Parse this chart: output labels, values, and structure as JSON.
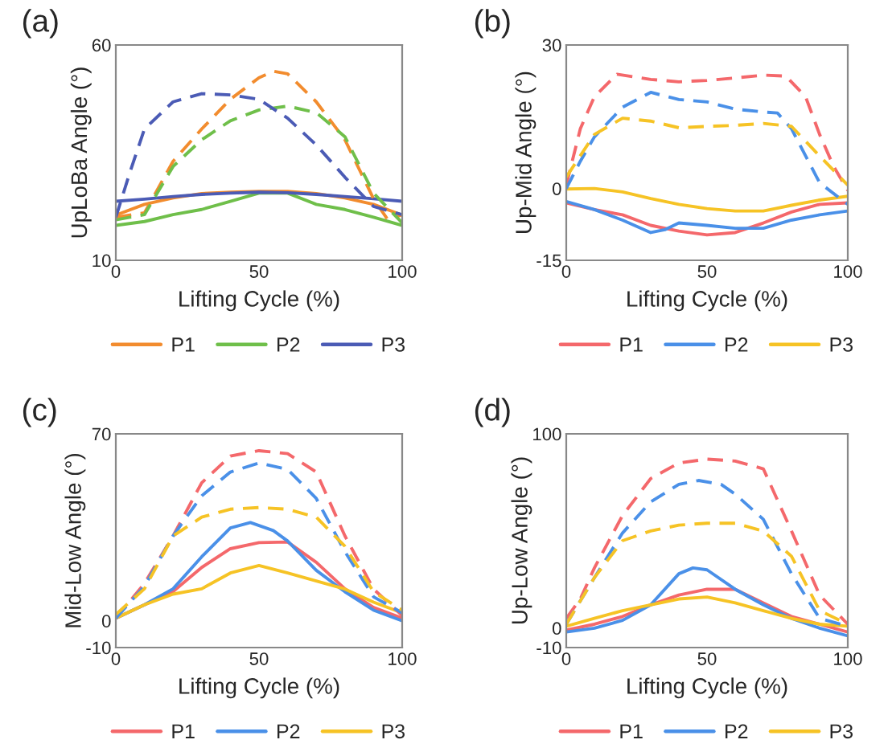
{
  "chart_data": [
    {
      "type": "line",
      "title": "(a)",
      "xlabel": "Lifting Cycle (%)",
      "ylabel": "UpLoBa Angle (°)",
      "xlim": [
        0,
        100
      ],
      "xticks": [
        0,
        50,
        100
      ],
      "ylim": [
        10,
        60
      ],
      "yticks": [
        10,
        60
      ],
      "legend": "bottom",
      "grid": false,
      "series": [
        {
          "name": "P1",
          "color": "#f28c2e",
          "line_style": "solid",
          "x": [
            0,
            10,
            20,
            30,
            40,
            50,
            60,
            70,
            80,
            90,
            100
          ],
          "values": [
            20.5,
            23,
            24.5,
            25.5,
            25.8,
            26,
            26,
            25.5,
            24.5,
            23,
            20.5
          ]
        },
        {
          "name": "P2",
          "color": "#6fbf4a",
          "line_style": "solid",
          "x": [
            0,
            10,
            20,
            30,
            40,
            50,
            60,
            70,
            80,
            90,
            100
          ],
          "values": [
            18.1,
            19,
            20.6,
            21.8,
            23.7,
            25.6,
            25.6,
            23,
            21.8,
            20,
            18.1
          ]
        },
        {
          "name": "P3",
          "color": "#4b5bb5",
          "line_style": "solid",
          "x": [
            0,
            10,
            20,
            30,
            40,
            50,
            60,
            70,
            80,
            90,
            100
          ],
          "values": [
            23.7,
            24.2,
            24.8,
            25.3,
            25.6,
            25.8,
            25.7,
            25.3,
            24.8,
            24.3,
            23.7
          ]
        },
        {
          "color": "#f28c2e",
          "line_style": "dashed",
          "x": [
            0,
            10,
            20,
            30,
            40,
            50,
            55,
            60,
            70,
            80,
            90,
            95,
            100
          ],
          "values": [
            20,
            21,
            33,
            40.5,
            47.4,
            52.4,
            53.9,
            53.3,
            46.8,
            38,
            24.3,
            19.4,
            20.6
          ]
        },
        {
          "color": "#6fbf4a",
          "line_style": "dashed",
          "x": [
            0,
            10,
            20,
            30,
            40,
            50,
            60,
            70,
            80,
            90,
            100
          ],
          "values": [
            19.4,
            20.6,
            31.8,
            38,
            42.4,
            44.9,
            45.8,
            44.3,
            38.7,
            25.6,
            18.7
          ]
        },
        {
          "color": "#4b5bb5",
          "line_style": "dashed",
          "x": [
            0,
            5,
            10,
            20,
            30,
            40,
            50,
            60,
            70,
            80,
            90,
            100
          ],
          "values": [
            20,
            30.6,
            40.5,
            46.8,
            48.7,
            48.4,
            47.4,
            43,
            36.8,
            29.3,
            22.5,
            20.6
          ]
        }
      ]
    },
    {
      "type": "line",
      "title": "(b)",
      "xlabel": "Lifting Cycle (%)",
      "ylabel": "Up-Mid Angle (°)",
      "xlim": [
        0,
        100
      ],
      "xticks": [
        0,
        50,
        100
      ],
      "ylim": [
        -15,
        30
      ],
      "yticks": [
        -15,
        0,
        30
      ],
      "legend": "bottom",
      "grid": false,
      "series": [
        {
          "name": "P1",
          "color": "#f4686b",
          "line_style": "solid",
          "x": [
            0,
            10,
            20,
            30,
            40,
            50,
            60,
            70,
            80,
            90,
            100
          ],
          "values": [
            -3,
            -4.4,
            -5.5,
            -7.7,
            -8.9,
            -9.7,
            -9.2,
            -7.2,
            -4.9,
            -3.3,
            -3
          ]
        },
        {
          "name": "P2",
          "color": "#4a90e8",
          "line_style": "solid",
          "x": [
            0,
            10,
            20,
            30,
            35,
            40,
            50,
            60,
            70,
            80,
            90,
            100
          ],
          "values": [
            -2.7,
            -4.4,
            -6.6,
            -9.2,
            -8.6,
            -7.2,
            -7.7,
            -8.3,
            -8.3,
            -6.6,
            -5.5,
            -4.7
          ]
        },
        {
          "name": "P3",
          "color": "#f6c325",
          "line_style": "solid",
          "x": [
            0,
            10,
            20,
            30,
            40,
            50,
            60,
            70,
            80,
            90,
            100
          ],
          "values": [
            -0.1,
            0,
            -0.7,
            -2.1,
            -3.3,
            -4.2,
            -4.7,
            -4.7,
            -3.5,
            -2.4,
            -1.6
          ]
        },
        {
          "color": "#f4686b",
          "line_style": "dashed",
          "x": [
            0,
            5,
            10,
            18,
            30,
            40,
            50,
            60,
            70,
            78,
            85,
            90,
            95,
            100
          ],
          "values": [
            0.7,
            12.5,
            19.2,
            23.9,
            22.8,
            22.3,
            22.6,
            23.1,
            23.7,
            23.5,
            19.2,
            11.3,
            4.6,
            -0.4
          ]
        },
        {
          "color": "#4a90e8",
          "line_style": "dashed",
          "x": [
            0,
            5,
            10,
            20,
            30,
            40,
            50,
            60,
            70,
            75,
            80,
            90,
            100
          ],
          "values": [
            0,
            5.7,
            10.8,
            17,
            20.1,
            18.6,
            18.1,
            16.6,
            16,
            15.8,
            12.5,
            1.2,
            -3.3
          ]
        },
        {
          "color": "#f6c325",
          "line_style": "dashed",
          "x": [
            0,
            10,
            20,
            30,
            40,
            50,
            60,
            70,
            80,
            90,
            100
          ],
          "values": [
            2.4,
            11.3,
            14.7,
            14.1,
            12.7,
            13,
            13.2,
            13.6,
            13,
            6.8,
            0.7
          ]
        }
      ]
    },
    {
      "type": "line",
      "title": "(c)",
      "xlabel": "Lifting Cycle (%)",
      "ylabel": "Mid-Low Angle (°)",
      "xlim": [
        0,
        100
      ],
      "xticks": [
        0,
        50,
        100
      ],
      "ylim": [
        -10,
        70
      ],
      "yticks": [
        -10,
        0,
        70
      ],
      "legend": "bottom",
      "grid": false,
      "series": [
        {
          "name": "P1",
          "color": "#f4686b",
          "line_style": "solid",
          "x": [
            0,
            10,
            20,
            30,
            40,
            50,
            60,
            70,
            80,
            90,
            100
          ],
          "values": [
            1,
            6,
            11,
            20,
            27,
            29.3,
            29.5,
            21.9,
            12,
            5,
            1
          ]
        },
        {
          "name": "P2",
          "color": "#4a90e8",
          "line_style": "solid",
          "x": [
            0,
            10,
            20,
            30,
            40,
            47,
            55,
            60,
            70,
            80,
            90,
            100
          ],
          "values": [
            1,
            6,
            12,
            24,
            34.8,
            36.8,
            33.8,
            29.9,
            18.9,
            10.9,
            4,
            0
          ]
        },
        {
          "name": "P3",
          "color": "#f6c325",
          "line_style": "solid",
          "x": [
            0,
            10,
            20,
            30,
            40,
            50,
            60,
            70,
            80,
            90,
            100
          ],
          "values": [
            1,
            6,
            10,
            12,
            17.9,
            20.7,
            17.9,
            14.9,
            11.9,
            7,
            3
          ]
        },
        {
          "color": "#f4686b",
          "line_style": "dashed",
          "x": [
            0,
            10,
            20,
            30,
            40,
            50,
            60,
            70,
            80,
            90,
            100
          ],
          "values": [
            1,
            14,
            31.8,
            51.7,
            61.7,
            63.7,
            62.6,
            55.7,
            31.8,
            11.9,
            2
          ]
        },
        {
          "color": "#4a90e8",
          "line_style": "dashed",
          "x": [
            0,
            10,
            20,
            30,
            40,
            50,
            60,
            70,
            80,
            90,
            100
          ],
          "values": [
            1,
            13,
            31.8,
            46.8,
            55.7,
            59.1,
            56.7,
            45.8,
            25.9,
            9,
            3
          ]
        },
        {
          "color": "#f6c325",
          "line_style": "dashed",
          "x": [
            0,
            10,
            20,
            30,
            40,
            50,
            60,
            70,
            80,
            90,
            100
          ],
          "values": [
            2.4,
            12,
            31.8,
            38.8,
            41.8,
            42.4,
            41.8,
            38.8,
            27.9,
            10.9,
            4
          ]
        }
      ]
    },
    {
      "type": "line",
      "title": "(d)",
      "xlabel": "Lifting Cycle (%)",
      "ylabel": "Up-Low Angle (°)",
      "xlim": [
        0,
        100
      ],
      "xticks": [
        0,
        50,
        100
      ],
      "ylim": [
        -10,
        100
      ],
      "yticks": [
        -10,
        0,
        100
      ],
      "legend": "bottom",
      "grid": false,
      "series": [
        {
          "name": "P1",
          "color": "#f4686b",
          "line_style": "solid",
          "x": [
            0,
            10,
            20,
            30,
            40,
            50,
            60,
            70,
            80,
            90,
            100
          ],
          "values": [
            -1,
            2,
            6,
            12,
            17,
            20,
            20,
            13,
            6,
            2,
            -2
          ]
        },
        {
          "name": "P2",
          "color": "#4a90e8",
          "line_style": "solid",
          "x": [
            0,
            10,
            20,
            30,
            40,
            45,
            50,
            60,
            70,
            80,
            90,
            100
          ],
          "values": [
            -2,
            0,
            4,
            12,
            28,
            31,
            30,
            20,
            12,
            5,
            0,
            -4
          ]
        },
        {
          "name": "P3",
          "color": "#f6c325",
          "line_style": "solid",
          "x": [
            0,
            10,
            20,
            30,
            40,
            50,
            60,
            70,
            80,
            90,
            100
          ],
          "values": [
            1,
            5,
            9,
            12,
            15,
            16,
            13,
            9,
            5,
            2,
            1
          ]
        },
        {
          "color": "#f4686b",
          "line_style": "dashed",
          "x": [
            0,
            5,
            10,
            20,
            30,
            40,
            50,
            60,
            70,
            80,
            90,
            100
          ],
          "values": [
            5,
            15,
            31,
            58,
            77,
            85,
            87,
            86,
            82,
            50,
            17,
            2
          ]
        },
        {
          "color": "#4a90e8",
          "line_style": "dashed",
          "x": [
            0,
            10,
            20,
            30,
            40,
            47,
            55,
            60,
            70,
            80,
            90,
            100
          ],
          "values": [
            2,
            26,
            49,
            65,
            74,
            76,
            74,
            69,
            56,
            28,
            5,
            1
          ]
        },
        {
          "color": "#f6c325",
          "line_style": "dashed",
          "x": [
            0,
            10,
            20,
            30,
            40,
            50,
            60,
            70,
            80,
            90,
            100
          ],
          "values": [
            2,
            26,
            45,
            50,
            53,
            54,
            54,
            50,
            37,
            9,
            2
          ]
        }
      ]
    }
  ]
}
